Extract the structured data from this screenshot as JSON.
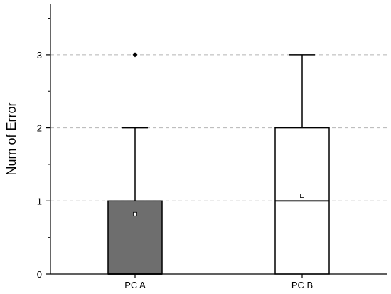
{
  "chart_data": {
    "type": "box",
    "title": "",
    "xlabel": "",
    "ylabel": "Num of Error",
    "ylim": [
      0,
      3.7
    ],
    "yticks": [
      0,
      1,
      2,
      3
    ],
    "ytick_labels": [
      "0",
      "1",
      "2",
      "3"
    ],
    "grid": {
      "y_dashed_at": [
        1,
        2,
        3
      ]
    },
    "categories": [
      "PC A",
      "PC B"
    ],
    "boxes": [
      {
        "category": "PC A",
        "min": 0,
        "q1": 0,
        "median": 0,
        "q3": 1,
        "whisker_high": 2,
        "mean": 0.82,
        "outliers": [
          3
        ],
        "fill": "#6e6e6e"
      },
      {
        "category": "PC B",
        "min": 0,
        "q1": 0,
        "median": 1,
        "q3": 2,
        "whisker_high": 3,
        "mean": 1.07,
        "outliers": [],
        "fill": "#ffffff"
      }
    ]
  }
}
